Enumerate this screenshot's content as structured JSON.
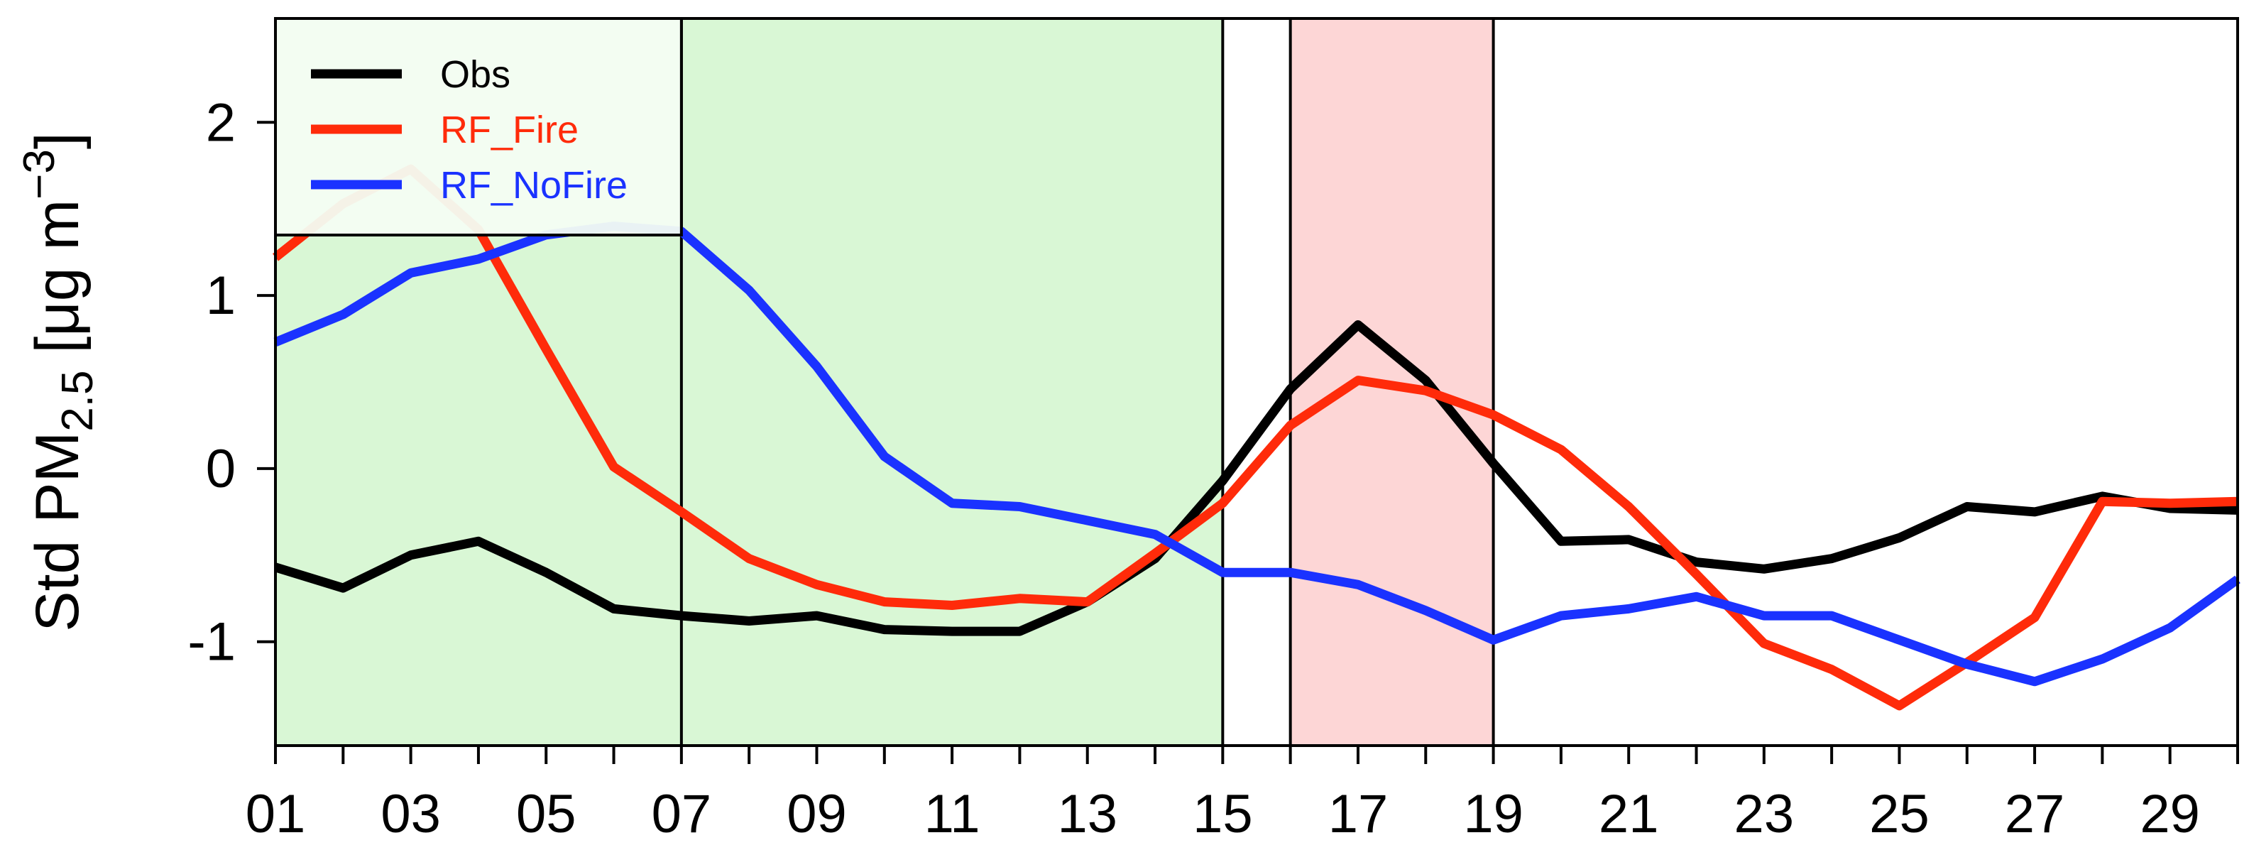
{
  "chart_data": {
    "type": "line",
    "title": "",
    "xlabel": "",
    "ylabel": {
      "prefix": "Std PM",
      "sub": "2.5",
      "units_open": " [μg m",
      "sup": "−3",
      "units_close": "]"
    },
    "xlim": [
      1,
      30
    ],
    "ylim": [
      -1.6,
      2.6
    ],
    "x": [
      1,
      2,
      3,
      4,
      5,
      6,
      7,
      8,
      9,
      10,
      11,
      12,
      13,
      14,
      15,
      16,
      17,
      18,
      19,
      20,
      21,
      22,
      23,
      24,
      25,
      26,
      27,
      28,
      29,
      30
    ],
    "x_ticks": [
      "01",
      "03",
      "05",
      "07",
      "09",
      "11",
      "13",
      "15",
      "17",
      "19",
      "21",
      "23",
      "25",
      "27",
      "29"
    ],
    "y_ticks": [
      "2",
      "1",
      "0",
      "-1"
    ],
    "grid": false,
    "legend_position": "top-left",
    "shaded_regions": [
      {
        "x_start": 1,
        "x_end": 15,
        "color": "#d9f7d5"
      },
      {
        "x_start": 16,
        "x_end": 19,
        "color": "#fdd6d6"
      }
    ],
    "vertical_lines": [
      7,
      15,
      16,
      19
    ],
    "series": [
      {
        "name": "Obs",
        "color": "#000000",
        "values": [
          -0.57,
          -0.69,
          -0.5,
          -0.42,
          -0.6,
          -0.81,
          -0.85,
          -0.88,
          -0.85,
          -0.93,
          -0.94,
          -0.94,
          -0.77,
          -0.52,
          -0.07,
          0.46,
          0.83,
          0.51,
          0.03,
          -0.42,
          -0.41,
          -0.54,
          -0.58,
          -0.52,
          -0.4,
          -0.22,
          -0.25,
          -0.16,
          -0.23,
          -0.24
        ]
      },
      {
        "name": "RF_Fire",
        "color": "#ff2b0a",
        "values": [
          1.22,
          1.53,
          1.73,
          1.38,
          0.69,
          0.01,
          -0.25,
          -0.52,
          -0.67,
          -0.77,
          -0.79,
          -0.75,
          -0.77,
          -0.49,
          -0.2,
          0.25,
          0.51,
          0.45,
          0.31,
          0.11,
          -0.22,
          -0.61,
          -1.01,
          -1.16,
          -1.37,
          -1.12,
          -0.86,
          -0.19,
          -0.2,
          -0.19
        ]
      },
      {
        "name": "RF_NoFire",
        "color": "#1a32ff",
        "values": [
          0.73,
          0.89,
          1.13,
          1.21,
          1.35,
          1.4,
          1.37,
          1.03,
          0.59,
          0.07,
          -0.2,
          -0.22,
          -0.3,
          -0.38,
          -0.6,
          -0.6,
          -0.67,
          -0.82,
          -0.99,
          -0.85,
          -0.81,
          -0.74,
          -0.85,
          -0.85,
          -0.99,
          -1.13,
          -1.23,
          -1.1,
          -0.92,
          -0.64
        ]
      }
    ]
  }
}
